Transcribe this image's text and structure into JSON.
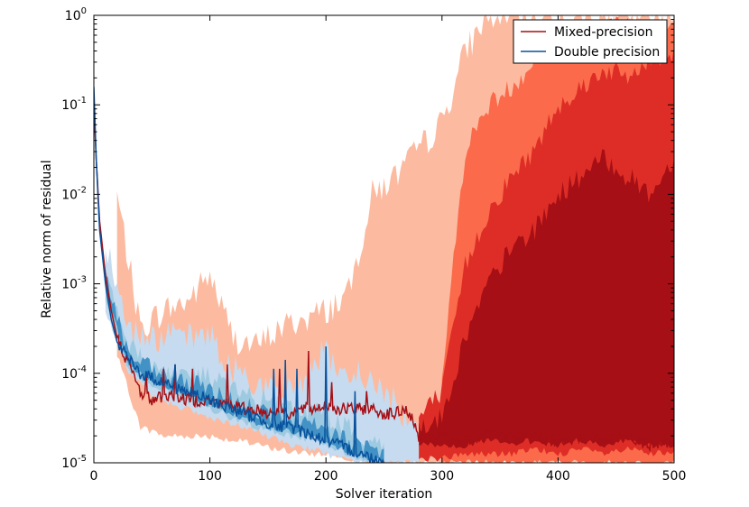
{
  "chart_data": {
    "type": "line",
    "title": "",
    "xlabel": "Solver iteration",
    "ylabel": "Relative norm of residual",
    "xlim": [
      0,
      500
    ],
    "ylim_log10": [
      -5,
      0
    ],
    "yscale": "log",
    "x_ticks": [
      0,
      100,
      200,
      300,
      400,
      500
    ],
    "x_tick_labels": [
      "0",
      "100",
      "200",
      "300",
      "400",
      "500"
    ],
    "y_ticks_log10": [
      -5,
      -4,
      -3,
      -2,
      -1,
      0
    ],
    "y_tick_labels": [
      {
        "base": "10",
        "exp": "-5"
      },
      {
        "base": "10",
        "exp": "-4"
      },
      {
        "base": "10",
        "exp": "-3"
      },
      {
        "base": "10",
        "exp": "-2"
      },
      {
        "base": "10",
        "exp": "-1"
      },
      {
        "base": "10",
        "exp": "0"
      }
    ],
    "legend_position": "top-right",
    "series": [
      {
        "name": "Mixed-precision",
        "color": "#a50f15",
        "x": [
          0,
          2,
          5,
          10,
          15,
          20,
          30,
          40,
          50,
          60,
          70,
          80,
          90,
          100,
          110,
          120,
          130,
          140,
          150,
          160,
          170,
          180,
          190,
          200,
          210,
          220,
          230,
          240,
          250,
          260,
          270,
          280,
          290,
          300,
          320,
          340,
          360,
          380,
          400,
          420,
          440,
          460,
          480,
          500
        ],
        "log10": [
          -1.0,
          -1.6,
          -2.3,
          -2.9,
          -3.3,
          -3.6,
          -3.9,
          -4.2,
          -4.3,
          -4.25,
          -4.25,
          -4.3,
          -4.3,
          -4.3,
          -4.35,
          -4.35,
          -4.4,
          -4.4,
          -4.45,
          -4.4,
          -4.45,
          -4.4,
          -4.4,
          -4.35,
          -4.4,
          -4.4,
          -4.4,
          -4.4,
          -4.45,
          -4.45,
          -4.4,
          -4.7,
          -4.75,
          -4.7,
          -4.75,
          -4.7,
          -4.7,
          -4.7,
          -4.75,
          -4.7,
          -4.75,
          -4.7,
          -4.8,
          -4.75
        ],
        "spikes": [
          [
            45,
            -4.0
          ],
          [
            60,
            -3.95
          ],
          [
            70,
            -3.9
          ],
          [
            85,
            -3.95
          ],
          [
            115,
            -3.9
          ],
          [
            160,
            -3.95
          ],
          [
            185,
            -3.75
          ],
          [
            205,
            -4.1
          ],
          [
            235,
            -4.2
          ]
        ]
      },
      {
        "name": "Double precision",
        "color": "#08519c",
        "x": [
          0,
          2,
          5,
          10,
          15,
          20,
          30,
          40,
          50,
          60,
          70,
          80,
          90,
          100,
          110,
          120,
          130,
          140,
          150,
          160,
          170,
          180,
          190,
          200,
          210,
          220,
          230,
          240,
          250
        ],
        "log10": [
          -0.8,
          -1.6,
          -2.4,
          -3.0,
          -3.4,
          -3.65,
          -3.85,
          -4.0,
          -4.05,
          -4.1,
          -4.15,
          -4.2,
          -4.25,
          -4.3,
          -4.35,
          -4.4,
          -4.45,
          -4.5,
          -4.55,
          -4.6,
          -4.6,
          -4.65,
          -4.7,
          -4.75,
          -4.8,
          -4.85,
          -4.9,
          -4.95,
          -5.0
        ],
        "spikes": [
          [
            70,
            -3.9
          ],
          [
            155,
            -3.95
          ],
          [
            165,
            -3.85
          ],
          [
            175,
            -3.95
          ],
          [
            200,
            -3.7
          ],
          [
            225,
            -4.2
          ]
        ]
      }
    ],
    "bands": [
      {
        "group": "Mixed-precision",
        "level": "outer",
        "color": "#fcbba1",
        "x": [
          20,
          40,
          60,
          80,
          100,
          120,
          140,
          160,
          180,
          200,
          220,
          240,
          260,
          280,
          300,
          320,
          340,
          360,
          380,
          400,
          420,
          440,
          460,
          480,
          500
        ],
        "upper": [
          -2.0,
          -3.5,
          -3.3,
          -3.2,
          -2.9,
          -3.6,
          -3.7,
          -3.5,
          -3.4,
          -3.3,
          -3.1,
          -2.0,
          -1.8,
          -1.5,
          -1.2,
          -0.4,
          0,
          0,
          0,
          0,
          0,
          0,
          0,
          0,
          0
        ],
        "lower": [
          -3.8,
          -4.6,
          -4.7,
          -4.7,
          -4.7,
          -4.75,
          -4.8,
          -4.85,
          -4.9,
          -4.9,
          -4.95,
          -5.0,
          -5.0,
          -5.0,
          -5.0,
          -5.0,
          -5.0,
          -5.0,
          -5.0,
          -5.0,
          -5.0,
          -5.0,
          -5.0,
          -5.0,
          -5.0
        ]
      },
      {
        "group": "Mixed-precision",
        "level": "mid",
        "color": "#fb6a4a",
        "x": [
          300,
          320,
          340,
          360,
          380,
          400,
          420,
          440,
          460,
          480,
          500
        ],
        "upper": [
          -4.0,
          -1.5,
          -1.0,
          -0.8,
          -0.5,
          -0.3,
          -0.2,
          -0.1,
          -0.1,
          -0.2,
          -0.1
        ],
        "lower": [
          -5.0,
          -5.0,
          -5.0,
          -5.0,
          -5.0,
          -5.0,
          -5.0,
          -5.0,
          -5.0,
          -5.0,
          -5.0
        ]
      },
      {
        "group": "Mixed-precision",
        "level": "inner",
        "color": "#de2d26",
        "x": [
          280,
          300,
          320,
          340,
          360,
          380,
          400,
          420,
          440,
          460,
          480,
          500
        ],
        "upper": [
          -4.5,
          -4.2,
          -2.8,
          -2.2,
          -1.8,
          -1.5,
          -1.0,
          -0.8,
          -0.6,
          -0.7,
          -0.5,
          -0.4
        ],
        "lower": [
          -4.95,
          -4.95,
          -4.9,
          -4.9,
          -4.9,
          -4.85,
          -4.9,
          -4.85,
          -4.9,
          -4.85,
          -4.9,
          -4.9
        ]
      },
      {
        "group": "Mixed-precision",
        "level": "core",
        "color": "#a50f15",
        "x": [
          280,
          300,
          320,
          340,
          360,
          380,
          400,
          420,
          440,
          460,
          480,
          500
        ],
        "upper": [
          -4.6,
          -4.5,
          -3.6,
          -3.0,
          -2.6,
          -2.4,
          -2.0,
          -1.8,
          -1.6,
          -1.8,
          -2.0,
          -1.6
        ],
        "lower": [
          -4.8,
          -4.8,
          -4.8,
          -4.75,
          -4.8,
          -4.75,
          -4.8,
          -4.75,
          -4.8,
          -4.75,
          -4.8,
          -4.8
        ]
      },
      {
        "group": "Double precision",
        "level": "outer",
        "color": "#c6dbef",
        "x": [
          10,
          30,
          50,
          70,
          90,
          100,
          110,
          130,
          150,
          170,
          190,
          200,
          210,
          230,
          250,
          270,
          280
        ],
        "upper": [
          -2.5,
          -3.5,
          -3.6,
          -3.6,
          -3.6,
          -3.5,
          -3.9,
          -4.0,
          -4.2,
          -4.2,
          -3.9,
          -3.7,
          -4.1,
          -4.0,
          -4.2,
          -4.5,
          -4.6
        ],
        "lower": [
          -3.3,
          -4.0,
          -4.25,
          -4.35,
          -4.45,
          -4.5,
          -4.55,
          -4.6,
          -4.7,
          -4.8,
          -4.85,
          -4.9,
          -4.95,
          -5.0,
          -5.0,
          -5.0,
          -5.0
        ]
      },
      {
        "group": "Double precision",
        "level": "mid",
        "color": "#9ecae1",
        "x": [
          10,
          30,
          50,
          70,
          90,
          110,
          130,
          150,
          170,
          190,
          210,
          230,
          250
        ],
        "upper": [
          -2.8,
          -3.7,
          -3.9,
          -4.0,
          -4.0,
          -4.1,
          -4.25,
          -4.3,
          -4.4,
          -4.4,
          -4.55,
          -4.7,
          -4.8
        ],
        "lower": [
          -3.2,
          -3.95,
          -4.15,
          -4.25,
          -4.35,
          -4.45,
          -4.55,
          -4.65,
          -4.7,
          -4.75,
          -4.85,
          -4.95,
          -5.0
        ]
      },
      {
        "group": "Double precision",
        "level": "inner",
        "color": "#4292c6",
        "x": [
          10,
          30,
          50,
          70,
          90,
          110,
          130,
          150,
          170,
          190,
          210,
          230,
          250
        ],
        "upper": [
          -2.9,
          -3.8,
          -3.98,
          -4.08,
          -4.15,
          -4.25,
          -4.35,
          -4.45,
          -4.55,
          -4.6,
          -4.7,
          -4.8,
          -4.9
        ],
        "lower": [
          -3.1,
          -3.9,
          -4.1,
          -4.2,
          -4.3,
          -4.4,
          -4.5,
          -4.6,
          -4.65,
          -4.72,
          -4.82,
          -4.92,
          -5.0
        ]
      }
    ]
  }
}
